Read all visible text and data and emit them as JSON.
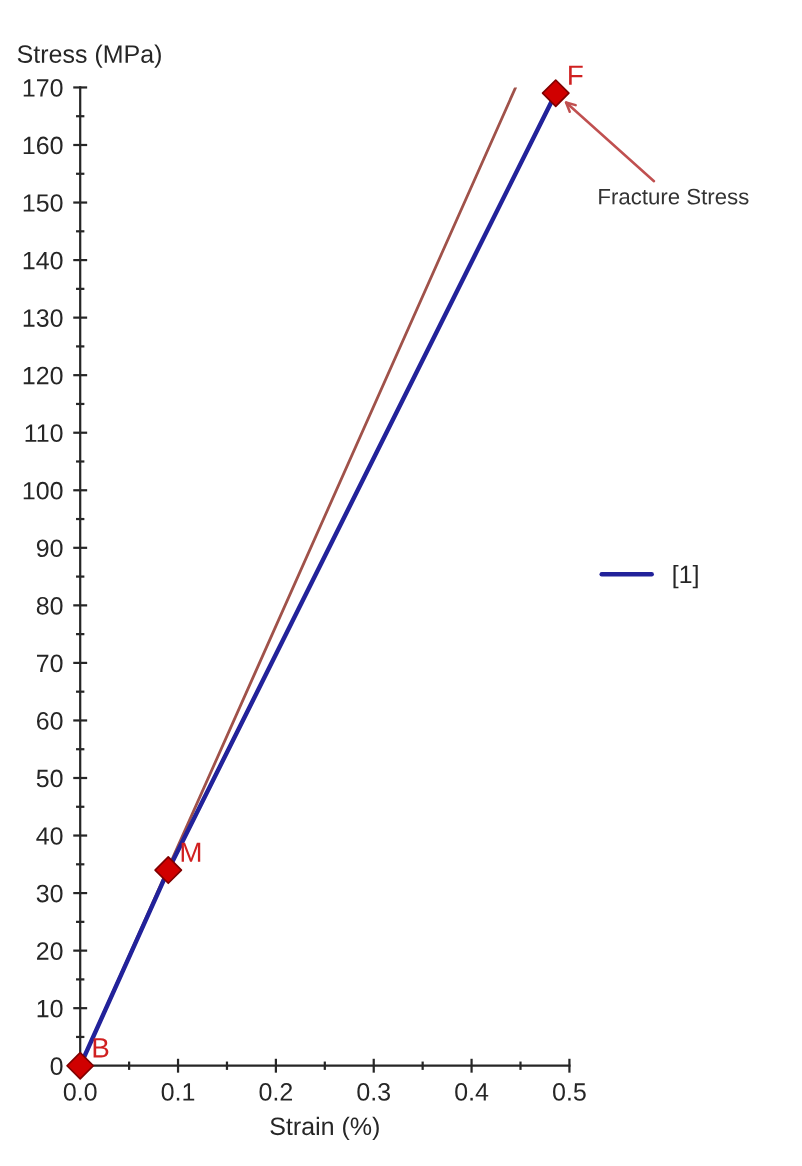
{
  "chart_data": {
    "type": "line",
    "xlabel": "Strain (%)",
    "ylabel": "Stress (MPa)",
    "series": [
      {
        "x": [
          0,
          0.445
        ],
        "values": [
          0,
          170
        ],
        "color": "#a0524a"
      },
      {
        "name": "[1]",
        "x": [
          0,
          0.09,
          0.486
        ],
        "values": [
          0,
          34,
          169
        ],
        "color": "#22229a"
      },
      {
        "type": "scatter",
        "x": [
          0,
          0.09,
          0.486
        ],
        "values": [
          0,
          34,
          169
        ],
        "color": "#d00000",
        "marker": "diamond"
      }
    ],
    "annotations": [
      {
        "text": "B",
        "x": 0,
        "y": 0
      },
      {
        "text": "M",
        "x": 0.09,
        "y": 34
      },
      {
        "text": "F",
        "x": 0.486,
        "y": 169
      },
      {
        "text": "Fracture Stress",
        "x": 0.486,
        "y": 169
      }
    ],
    "xlim": [
      0,
      0.5
    ],
    "ylim": [
      0,
      170
    ],
    "xticks": [
      {
        "value": 0,
        "label": "0.0"
      },
      0.1,
      0.2,
      0.3,
      0.4,
      0.5
    ],
    "yticks": [
      0,
      10,
      20,
      30,
      40,
      50,
      60,
      70,
      80,
      90,
      100,
      110,
      120,
      130,
      140,
      150,
      160,
      170
    ],
    "grid": false,
    "legend": "right"
  }
}
